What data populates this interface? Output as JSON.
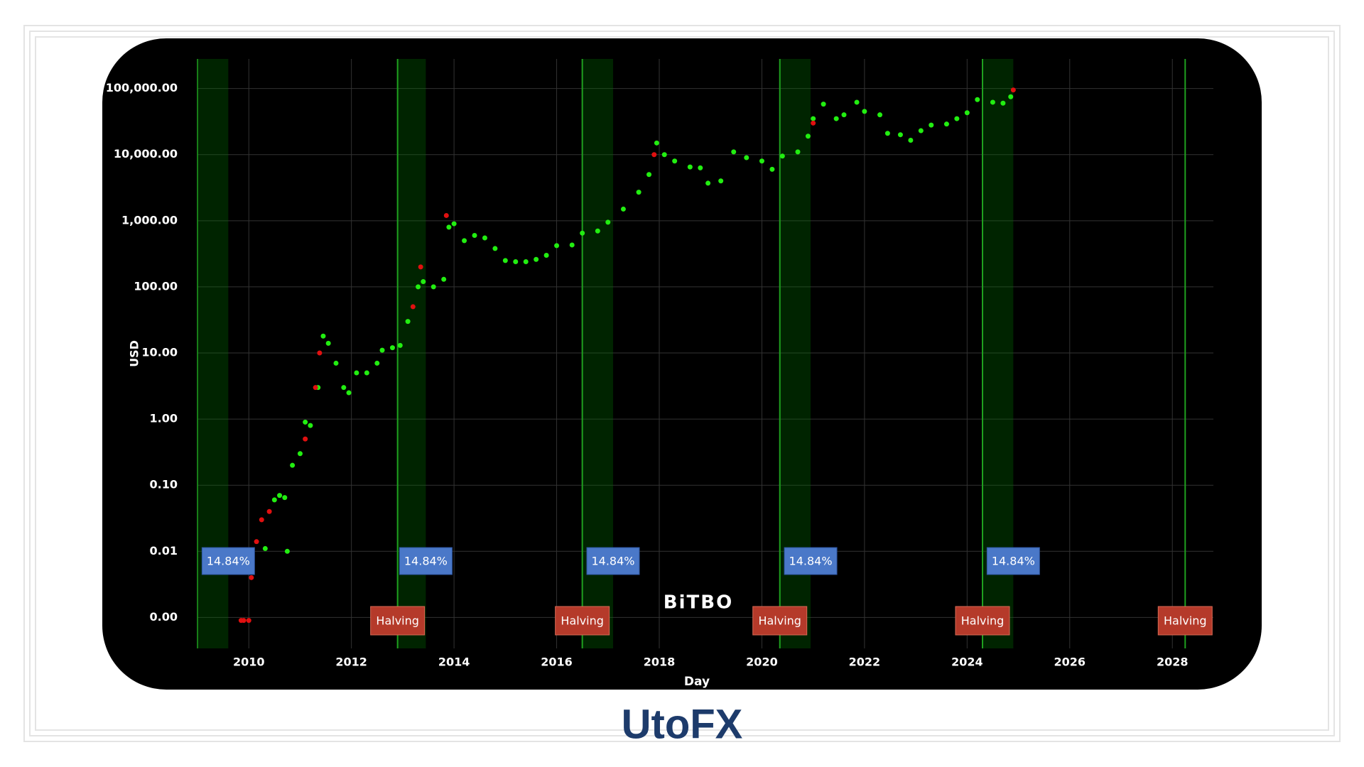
{
  "chart_data": {
    "type": "scatter",
    "x_label": "Day",
    "y_label": "USD",
    "watermark": "BiTBO",
    "log_y": true,
    "grid": true,
    "xlim": [
      2009.0,
      2028.8
    ],
    "xticks": [
      2010,
      2012,
      2014,
      2016,
      2018,
      2020,
      2022,
      2024,
      2026,
      2028
    ],
    "ylim": [
      0.00034,
      280000
    ],
    "yticks": [
      {
        "value": 0.001,
        "label": "0.00"
      },
      0.01,
      {
        "value": 0.1,
        "label": "0.10"
      },
      {
        "value": 1,
        "label": "1.00"
      },
      {
        "value": 10,
        "label": "10.00"
      },
      {
        "value": 100,
        "label": "100.00"
      },
      {
        "value": 1000,
        "label": "1,000.00"
      },
      {
        "value": 10000,
        "label": "10,000.00"
      },
      {
        "value": 100000,
        "label": "100,000.00"
      }
    ],
    "halving_periods": [
      {
        "start": 2009.0,
        "end": 2009.6,
        "label": "14.84%"
      },
      {
        "start": 2012.9,
        "end": 2013.45,
        "label": "14.84%"
      },
      {
        "start": 2016.5,
        "end": 2017.1,
        "label": "14.84%"
      },
      {
        "start": 2020.35,
        "end": 2020.95,
        "label": "14.84%"
      },
      {
        "start": 2024.3,
        "end": 2024.9,
        "label": "14.84%"
      }
    ],
    "halvings": [
      {
        "x": 2012.9,
        "label": "Halving"
      },
      {
        "x": 2016.5,
        "label": "Halving"
      },
      {
        "x": 2020.35,
        "label": "Halving"
      },
      {
        "x": 2024.3,
        "label": "Halving"
      },
      {
        "x": 2028.25,
        "label": "Halving"
      }
    ],
    "series": [
      {
        "color": "#22ee11",
        "x": [
          2010.32,
          2010.75,
          2010.5,
          2010.6,
          2010.7,
          2010.85,
          2011.0,
          2011.1,
          2011.2,
          2011.35,
          2011.45,
          2011.55,
          2011.7,
          2011.85,
          2011.95,
          2012.1,
          2012.3,
          2012.5,
          2012.6,
          2012.8,
          2012.95,
          2013.1,
          2013.3,
          2013.4,
          2013.6,
          2013.8,
          2013.9,
          2014.0,
          2014.2,
          2014.4,
          2014.6,
          2014.8,
          2015.0,
          2015.2,
          2015.4,
          2015.6,
          2015.8,
          2016.0,
          2016.3,
          2016.5,
          2016.8,
          2017.0,
          2017.3,
          2017.6,
          2017.8,
          2017.95,
          2018.1,
          2018.3,
          2018.6,
          2018.8,
          2018.95,
          2019.2,
          2019.45,
          2019.7,
          2020.0,
          2020.2,
          2020.4,
          2020.7,
          2020.9,
          2021.0,
          2021.2,
          2021.45,
          2021.6,
          2021.85,
          2022.0,
          2022.3,
          2022.45,
          2022.7,
          2022.9,
          2023.1,
          2023.3,
          2023.6,
          2023.8,
          2024.0,
          2024.2,
          2024.5,
          2024.7,
          2024.85
        ],
        "values": [
          0.011,
          0.01,
          0.06,
          0.07,
          0.065,
          0.2,
          0.3,
          0.9,
          0.8,
          3,
          18,
          14,
          7,
          3,
          2.5,
          5,
          5,
          7,
          11,
          12,
          13,
          30,
          100,
          120,
          100,
          130,
          800,
          900,
          500,
          600,
          550,
          380,
          250,
          240,
          240,
          260,
          300,
          420,
          430,
          650,
          700,
          950,
          1500,
          2700,
          5000,
          15000,
          10000,
          8000,
          6500,
          6300,
          3700,
          4000,
          11000,
          9000,
          8000,
          6000,
          9500,
          11000,
          19000,
          35000,
          58000,
          35000,
          40000,
          62000,
          45000,
          40000,
          21000,
          20000,
          16500,
          23000,
          28000,
          29000,
          35000,
          43000,
          68000,
          62000,
          60000,
          75000
        ]
      },
      {
        "color": "#e01010",
        "x": [
          2009.85,
          2009.9,
          2010.0,
          2010.05,
          2010.15,
          2010.25,
          2010.4,
          2011.1,
          2011.3,
          2011.38,
          2013.2,
          2013.35,
          2013.85,
          2017.9,
          2021.0,
          2024.9
        ],
        "values": [
          0.0009,
          0.0009,
          0.0009,
          0.004,
          0.014,
          0.03,
          0.04,
          0.5,
          3,
          10,
          50,
          200,
          1200,
          10000,
          30000,
          95000
        ]
      }
    ]
  },
  "logo": "UtoFX"
}
